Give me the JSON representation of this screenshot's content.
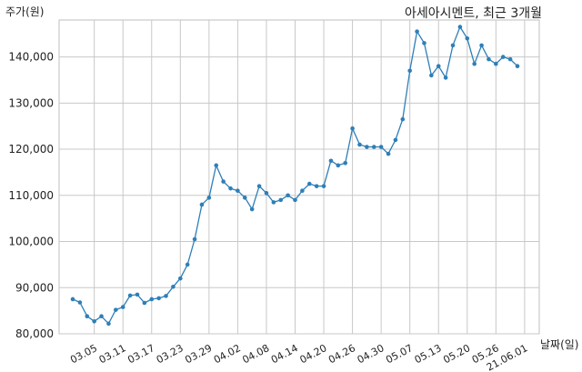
{
  "chart_data": {
    "type": "line",
    "title": "아세아시멘트, 최근 3개월",
    "ylabel": "주가(원)",
    "xlabel": "날짜(일)",
    "ylim": [
      80000,
      148000
    ],
    "yticks": [
      80000,
      90000,
      100000,
      110000,
      120000,
      130000,
      140000
    ],
    "ytick_labels": [
      "80,000",
      "90,000",
      "100,000",
      "110,000",
      "120,000",
      "130,000",
      "140,000"
    ],
    "xtick_labels": [
      "03.05",
      "03.11",
      "03.17",
      "03.23",
      "03.29",
      "04.02",
      "04.08",
      "04.14",
      "04.20",
      "04.26",
      "04.30",
      "05.07",
      "05.13",
      "05.20",
      "05.26",
      "21.06.01"
    ],
    "xtick_index": [
      3,
      7,
      11,
      15,
      19,
      23,
      27,
      31,
      35,
      39,
      43,
      47,
      51,
      55,
      59,
      63
    ],
    "grid": true,
    "line_color": "#2e7fb8",
    "series": [
      {
        "values": [
          87500,
          86800,
          83800,
          82700,
          83800,
          82200,
          85200,
          85800,
          88300,
          88500,
          86700,
          87500,
          87700,
          88200,
          90200,
          92000,
          95000,
          100500,
          108000,
          109500,
          116500,
          113000,
          111500,
          111000,
          109500,
          107000,
          112000,
          110500,
          108500,
          109000,
          110000,
          109000,
          111000,
          112500,
          112000,
          112000,
          117500,
          116500,
          117000,
          124500,
          121000,
          120500,
          120500,
          120500,
          119000,
          122000,
          126500,
          137000,
          145500,
          143000,
          136000,
          138000,
          135500,
          142500,
          146500,
          144000,
          138500,
          142500,
          139500,
          138500,
          140000,
          139500,
          138000
        ]
      }
    ]
  }
}
